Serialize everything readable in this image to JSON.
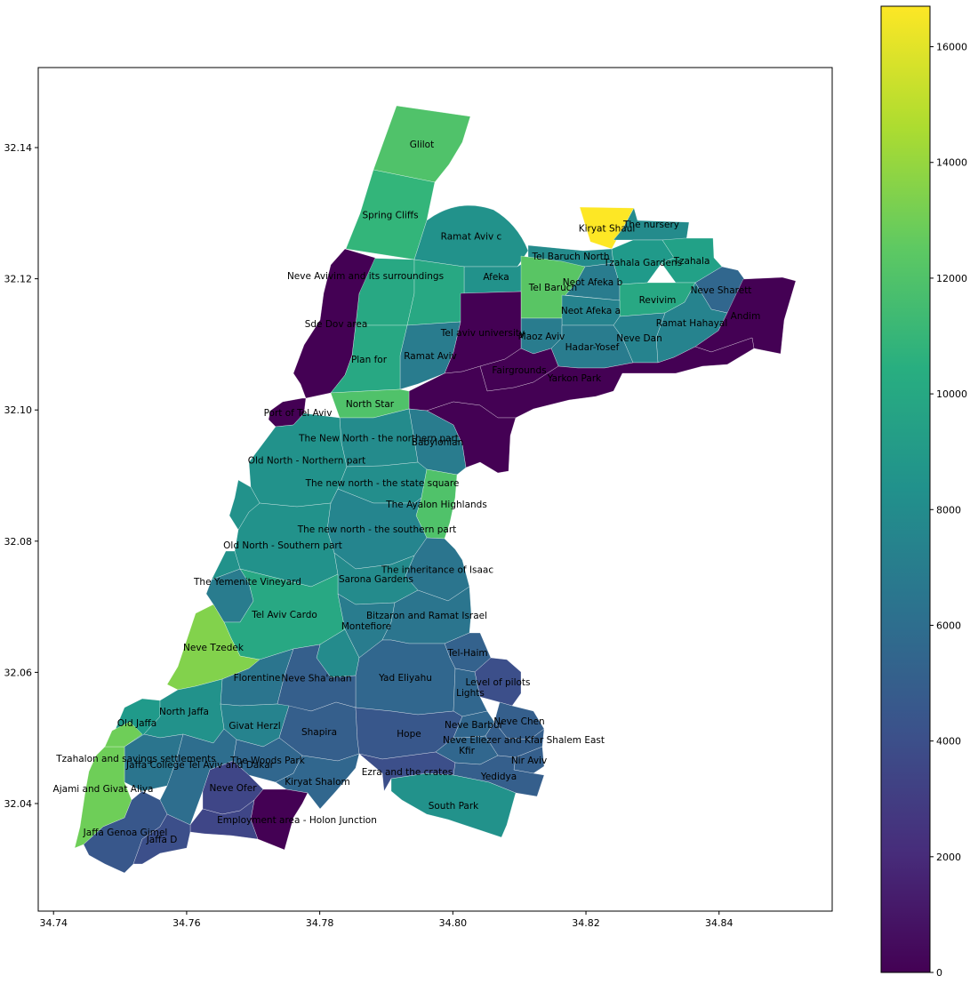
{
  "map": {
    "xticks": [
      34.74,
      34.76,
      34.78,
      34.8,
      34.82,
      34.84
    ],
    "yticks": [
      32.04,
      32.06,
      32.08,
      32.1,
      32.12,
      32.14
    ],
    "xlim": [
      34.7377,
      34.857
    ],
    "ylim": [
      32.0236,
      32.1522
    ],
    "colormap": "viridis",
    "neighborhoods": [
      {
        "name": "Glilot",
        "value": 12000
      },
      {
        "name": "Spring Cliffs",
        "value": 11000
      },
      {
        "name": "Ramat Aviv c",
        "value": 8500
      },
      {
        "name": "Kiryat Shaul",
        "value": 16700
      },
      {
        "name": "The nursery",
        "value": 8000
      },
      {
        "name": "Tel Baruch North",
        "value": 8000
      },
      {
        "name": "Tzahala Gardens",
        "value": 9000
      },
      {
        "name": "Tzahala",
        "value": 9500
      },
      {
        "name": "Afeka",
        "value": 8500
      },
      {
        "name": "Tel Baruch",
        "value": 12300
      },
      {
        "name": "Neot Afeka b",
        "value": 7000
      },
      {
        "name": "Neve Sharett",
        "value": 5500
      },
      {
        "name": "Neve Avivim and its surroundings",
        "value": 10000
      },
      {
        "name": "Revivim",
        "value": 10000
      },
      {
        "name": "Neot Afeka a",
        "value": 7500
      },
      {
        "name": "Ramat Hahayal",
        "value": 7500
      },
      {
        "name": "Sde Dov area",
        "value": 0
      },
      {
        "name": "Maoz Aviv",
        "value": 7000
      },
      {
        "name": "Neve Dan",
        "value": 7500
      },
      {
        "name": "Andim",
        "value": 0
      },
      {
        "name": "Tel aviv university",
        "value": 0
      },
      {
        "name": "Hadar-Yosef",
        "value": 7000
      },
      {
        "name": "Ramat Aviv",
        "value": 7000
      },
      {
        "name": "Plan for",
        "value": 10000
      },
      {
        "name": "Fairgrounds",
        "value": 0
      },
      {
        "name": "Yarkon Park",
        "value": 0
      },
      {
        "name": "North Star",
        "value": 12000
      },
      {
        "name": "Port of Tel Aviv",
        "value": 0
      },
      {
        "name": "Babylonian",
        "value": 7000
      },
      {
        "name": "The New North - the northern part",
        "value": 8000
      },
      {
        "name": "Old North - Northern part",
        "value": 8500
      },
      {
        "name": "The new north - the state square",
        "value": 8200
      },
      {
        "name": "The Ayalon Highlands",
        "value": 12000
      },
      {
        "name": "The new north - the southern part",
        "value": 7600
      },
      {
        "name": "Old North - Southern part",
        "value": 8500
      },
      {
        "name": "The inheritance of Isaac",
        "value": 6500
      },
      {
        "name": "Sarona Gardens",
        "value": 8000
      },
      {
        "name": "The Yemenite Vineyard",
        "value": 7000
      },
      {
        "name": "Tel Aviv Cardo",
        "value": 10000
      },
      {
        "name": "Montefiore",
        "value": 7000
      },
      {
        "name": "Bitzaron and Ramat Israel",
        "value": 6500
      },
      {
        "name": "Neve Tzedek",
        "value": 13500
      },
      {
        "name": "Tel-Haim",
        "value": 5200
      },
      {
        "name": "Yad Eliyahu",
        "value": 5500
      },
      {
        "name": "Level of pilots",
        "value": 4000
      },
      {
        "name": "Florentine",
        "value": 6500
      },
      {
        "name": "Neve Sha'anan",
        "value": 5000
      },
      {
        "name": "Lights",
        "value": 5500
      },
      {
        "name": "Old Jaffa",
        "value": 9000
      },
      {
        "name": "North Jaffa",
        "value": 8500
      },
      {
        "name": "Neve Chen",
        "value": 5000
      },
      {
        "name": "Givat Herzl",
        "value": 7500
      },
      {
        "name": "Shapira",
        "value": 5000
      },
      {
        "name": "Hope",
        "value": 4500
      },
      {
        "name": "Neve Barbur",
        "value": 5500
      },
      {
        "name": "Neve Eliezer and Kfar Shalem East",
        "value": 5000
      },
      {
        "name": "Kfir",
        "value": 5500
      },
      {
        "name": "Nir Aviv",
        "value": 5000
      },
      {
        "name": "The Woods Park",
        "value": 5500
      },
      {
        "name": "Ezra and the crates",
        "value": 4000
      },
      {
        "name": "Kiryat Shalom",
        "value": 5500
      },
      {
        "name": "Yedidya",
        "value": 5000
      },
      {
        "name": "Tzahalon and savings settlements",
        "value": 6500
      },
      {
        "name": "Jaffa College Tel Aviv and Dakar",
        "value": 6000
      },
      {
        "name": "Ajami and Givat Aliya",
        "value": 13000
      },
      {
        "name": "Neve Ofer",
        "value": 3500
      },
      {
        "name": "South Park",
        "value": 8500
      },
      {
        "name": "Employment area - Holon Junction",
        "value": 0
      },
      {
        "name": "Jaffa Genoa Gimel",
        "value": 4500
      },
      {
        "name": "Jaffa D",
        "value": 4000
      }
    ]
  },
  "colorbar": {
    "min": 0,
    "max": 16700,
    "ticks": [
      0,
      2000,
      4000,
      6000,
      8000,
      10000,
      12000,
      14000,
      16000
    ]
  }
}
